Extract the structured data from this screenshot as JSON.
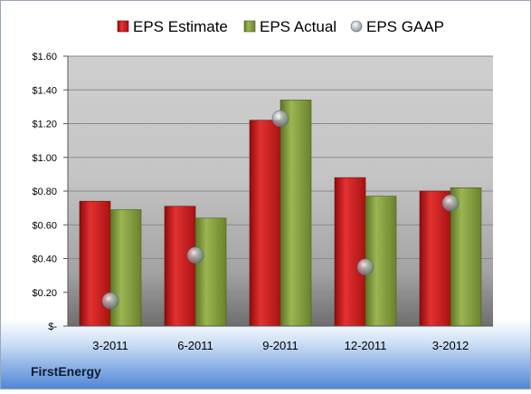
{
  "company": "FirstEnergy",
  "chart_data": {
    "type": "bar",
    "categories": [
      "3-2011",
      "6-2011",
      "9-2011",
      "12-2011",
      "3-2012"
    ],
    "series": [
      {
        "name": "EPS Estimate",
        "kind": "bar",
        "color": "#cc1a1a",
        "values": [
          0.74,
          0.71,
          1.22,
          0.88,
          0.8
        ]
      },
      {
        "name": "EPS Actual",
        "kind": "bar",
        "color": "#7f9a35",
        "values": [
          0.69,
          0.64,
          1.34,
          0.77,
          0.82
        ]
      },
      {
        "name": "EPS GAAP",
        "kind": "marker",
        "color": "#9aa4b0",
        "values": [
          0.15,
          0.42,
          1.23,
          0.35,
          0.73
        ]
      }
    ],
    "ylim": [
      0,
      1.6
    ],
    "yticks": [
      0,
      0.2,
      0.4,
      0.6,
      0.8,
      1.0,
      1.2,
      1.4,
      1.6
    ],
    "ytick_labels": [
      "$-",
      "$0.20",
      "$0.40",
      "$0.60",
      "$0.80",
      "$1.00",
      "$1.20",
      "$1.40",
      "$1.60"
    ],
    "grid": true,
    "legend_position": "top"
  }
}
